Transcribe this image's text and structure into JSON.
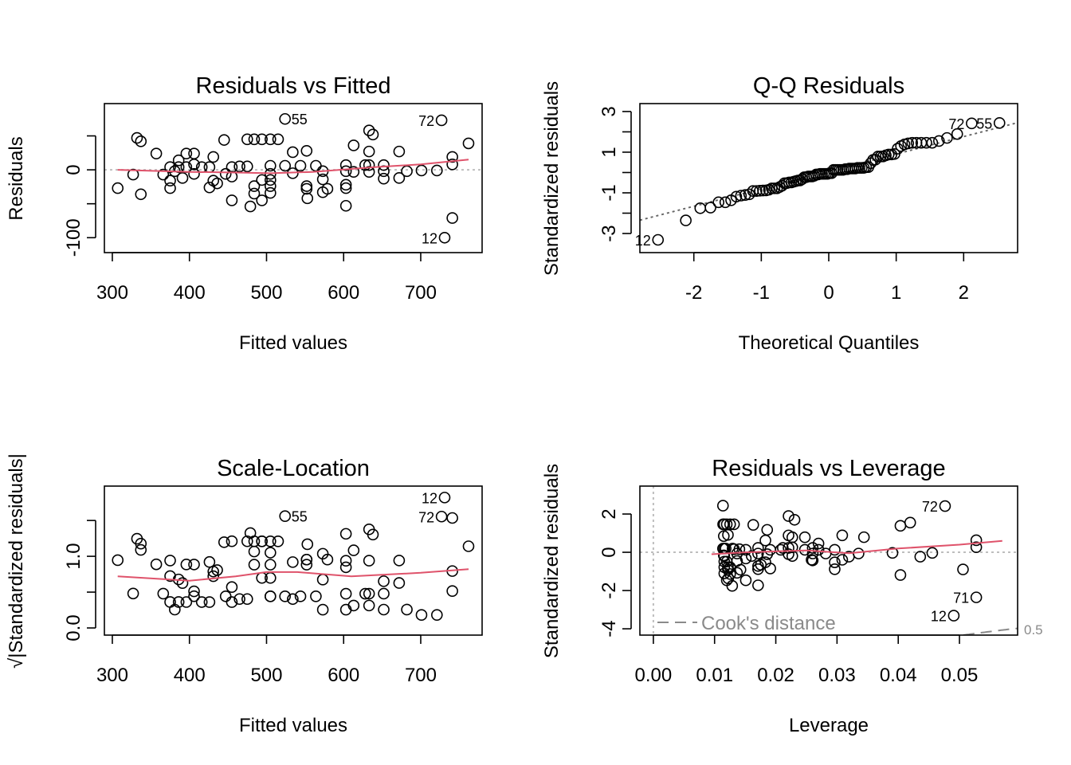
{
  "chart_data": [
    {
      "type": "scatter",
      "title": "Residuals vs Fitted",
      "xlabel": "Fitted values",
      "ylabel": "Residuals",
      "xlim": [
        289.7,
        779.6
      ],
      "ylim": [
        -122,
        97.6
      ],
      "xticks": [
        300,
        400,
        500,
        600,
        700
      ],
      "yticks": [
        -100,
        -50,
        0,
        50
      ],
      "ytick_labels": [
        "-100",
        "",
        "0",
        ""
      ],
      "reference_line": {
        "y": 0,
        "style": "dotted",
        "color": "#BEBEBE"
      },
      "smooth_color": "#DF536B",
      "smooth": [
        [
          307,
          0
        ],
        [
          400,
          -3
        ],
        [
          460,
          -4
        ],
        [
          505,
          -5
        ],
        [
          560,
          -3
        ],
        [
          640,
          4
        ],
        [
          700,
          8
        ],
        [
          762,
          15
        ]
      ]
    },
    {
      "type": "scatter",
      "title": "Q-Q Residuals",
      "xlabel": "Theoretical Quantiles",
      "ylabel": "Standardized residuals",
      "xlim": [
        -2.8,
        2.8
      ],
      "ylim": [
        -3.94,
        3.39
      ],
      "xticks": [
        -2,
        -1,
        0,
        1,
        2
      ],
      "yticks": [
        -3,
        -2,
        -1,
        0,
        1,
        2,
        3
      ],
      "ytick_labels": [
        "-3",
        "",
        "-1",
        "",
        "1",
        "",
        "3"
      ],
      "reference_line": {
        "type": "qq-line",
        "style": "dotted",
        "color": "#666666"
      }
    },
    {
      "type": "scatter",
      "title": "Scale-Location",
      "xlabel": "Fitted values",
      "ylabel": "√|Standardized residuals|",
      "xlim": [
        289.7,
        779.6
      ],
      "ylim": [
        -0.1,
        1.98
      ],
      "xticks": [
        300,
        400,
        500,
        600,
        700
      ],
      "yticks": [
        0,
        0.5,
        1.0,
        1.5
      ],
      "ytick_labels": [
        "0.0",
        "",
        "1.0",
        ""
      ],
      "smooth_color": "#DF536B",
      "smooth": [
        [
          307,
          0.72
        ],
        [
          400,
          0.66
        ],
        [
          460,
          0.72
        ],
        [
          500,
          0.78
        ],
        [
          540,
          0.78
        ],
        [
          610,
          0.72
        ],
        [
          700,
          0.77
        ],
        [
          762,
          0.82
        ]
      ]
    },
    {
      "type": "scatter",
      "title": "Residuals vs Leverage",
      "xlabel": "Leverage",
      "ylabel": "Standardized residuals",
      "xlim": [
        -0.0022,
        0.0595
      ],
      "ylim": [
        -4.33,
        3.46
      ],
      "xticks": [
        0.0,
        0.01,
        0.02,
        0.03,
        0.04,
        0.05
      ],
      "xtick_labels": [
        "0.00",
        "0.01",
        "0.02",
        "0.03",
        "0.04",
        "0.05"
      ],
      "yticks": [
        -4,
        -2,
        0,
        2
      ],
      "ytick_labels": [
        "-4",
        "-2",
        "0",
        "2"
      ],
      "smooth_color": "#DF536B",
      "smooth": [
        [
          0.0095,
          -0.1
        ],
        [
          0.015,
          0
        ],
        [
          0.02,
          0.05
        ],
        [
          0.025,
          0.1
        ],
        [
          0.032,
          -0.05
        ],
        [
          0.04,
          0.2
        ],
        [
          0.05,
          0.4
        ],
        [
          0.057,
          0.6
        ]
      ],
      "legend": "Cook's distance",
      "cooks_contours": [
        0.5
      ],
      "cooks_contour_label": "0.5"
    }
  ],
  "observations": {
    "fitted": [
      307,
      327,
      332,
      337,
      337,
      357,
      366,
      375,
      375,
      375,
      381,
      386,
      386,
      391,
      396,
      396,
      406,
      406,
      406,
      416,
      426,
      426,
      431,
      431,
      436,
      445,
      447,
      455,
      455,
      455,
      465,
      475,
      475,
      484,
      494,
      505,
      515,
      479,
      484,
      484,
      494,
      494,
      505,
      505,
      505,
      505,
      505,
      524,
      524,
      534,
      534,
      544,
      552,
      552,
      552,
      553,
      564,
      573,
      573,
      573,
      579,
      603,
      603,
      603,
      603,
      603,
      613,
      613,
      628,
      633,
      638,
      633,
      633,
      633,
      652,
      652,
      652,
      672,
      672,
      682,
      701,
      721,
      727,
      741,
      741,
      741,
      731,
      762
    ],
    "residuals": [
      -27,
      -7,
      47,
      42,
      -36,
      24,
      -7,
      4,
      -16,
      -27,
      -2,
      14,
      4,
      -12,
      24,
      4,
      24,
      8,
      -6,
      4,
      4,
      -26,
      19,
      -16,
      -20,
      44,
      -6,
      4,
      -10,
      -45,
      5,
      5,
      45,
      45,
      45,
      45,
      45,
      -54,
      -24,
      -35,
      -15,
      -45,
      6,
      -6,
      -15,
      -24,
      -34,
      75,
      6,
      26,
      -5,
      6,
      28,
      -24,
      -28,
      -42,
      6,
      -2,
      -14,
      -33,
      -28,
      7,
      -2,
      -22,
      -27,
      -53,
      36,
      -3,
      7,
      58,
      52,
      27,
      7,
      -3,
      7,
      -2,
      -13,
      27,
      -12,
      -2,
      -1,
      -1,
      73,
      19,
      8,
      -71,
      -100,
      39
    ]
  },
  "point_labels": [
    {
      "obs": "55",
      "index": 47
    },
    {
      "obs": "72",
      "index": 82
    },
    {
      "obs": "12",
      "index": 86
    },
    {
      "obs": "71",
      "index": 85
    }
  ],
  "panel_labels": [
    [
      "55",
      "72",
      "12"
    ],
    [
      "72",
      "55",
      "12"
    ],
    [
      "12",
      "72",
      "55"
    ],
    [
      "72",
      "71",
      "12"
    ]
  ]
}
